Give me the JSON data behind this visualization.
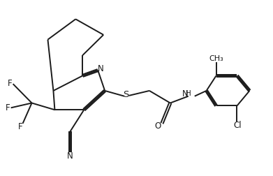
{
  "background_color": "#ffffff",
  "line_color": "#1a1a1a",
  "line_width": 1.4,
  "font_size": 8.5,
  "figsize": [
    3.91,
    2.52
  ],
  "dpi": 100,
  "xlim": [
    0,
    9.5
  ],
  "ylim": [
    0,
    6.0
  ]
}
